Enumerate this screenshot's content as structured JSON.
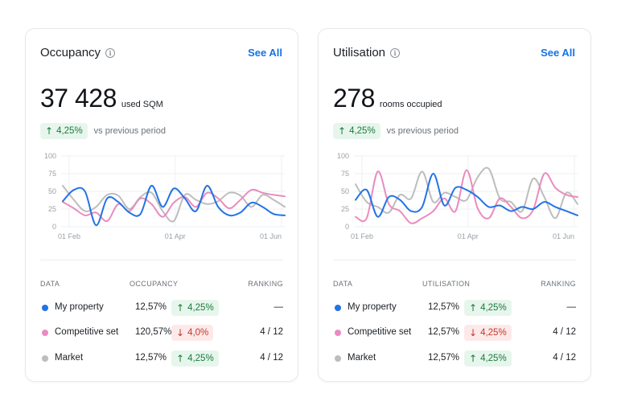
{
  "colors": {
    "my_property": "#2273e6",
    "competitive_set": "#ea8cbf",
    "market": "#bdbdbd",
    "link": "#1473e6",
    "up": "#1b7a3e",
    "down": "#c0392b"
  },
  "cards": [
    {
      "title": "Occupancy",
      "info_icon": "info-icon",
      "see_all": "See All",
      "value": "37 428",
      "unit": "used SQM",
      "delta": {
        "direction": "up",
        "arrow": "↑",
        "value": "4,25%"
      },
      "vs_text": "vs previous period",
      "table": {
        "col_data": "DATA",
        "col_metric": "OCCUPANCY",
        "col_rank": "RANKING",
        "rows": [
          {
            "name": "My property",
            "value": "12,57%",
            "dir": "up",
            "arrow": "↑",
            "delta": "4,25%",
            "rank": "—"
          },
          {
            "name": "Competitive set",
            "value": "120,57%",
            "dir": "down",
            "arrow": "↓",
            "delta": "4,0%",
            "rank": "4 / 12"
          },
          {
            "name": "Market",
            "value": "12,57%",
            "dir": "up",
            "arrow": "↑",
            "delta": "4,25%",
            "rank": "4 / 12"
          }
        ]
      }
    },
    {
      "title": "Utilisation",
      "info_icon": "info-icon",
      "see_all": "See All",
      "value": "278",
      "unit": "rooms occupied",
      "delta": {
        "direction": "up",
        "arrow": "↑",
        "value": "4,25%"
      },
      "vs_text": "vs previous period",
      "table": {
        "col_data": "DATA",
        "col_metric": "UTILISATION",
        "col_rank": "RANKING",
        "rows": [
          {
            "name": "My property",
            "value": "12,57%",
            "dir": "up",
            "arrow": "↑",
            "delta": "4,25%",
            "rank": "—"
          },
          {
            "name": "Competitive set",
            "value": "12,57%",
            "dir": "down",
            "arrow": "↓",
            "delta": "4,25%",
            "rank": "4 / 12"
          },
          {
            "name": "Market",
            "value": "12,57%",
            "dir": "up",
            "arrow": "↑",
            "delta": "4,25%",
            "rank": "4 / 12"
          }
        ]
      }
    }
  ],
  "chart_data": [
    {
      "type": "line",
      "ylim": [
        0,
        100
      ],
      "yticks": [
        "0",
        "25",
        "50",
        "75",
        "100"
      ],
      "xticks": [
        "01 Feb",
        "01 Apr",
        "01 Jun"
      ],
      "grid": true,
      "series": [
        {
          "key": "market",
          "values": [
            58,
            38,
            22,
            28,
            45,
            44,
            25,
            42,
            48,
            22,
            8,
            45,
            38,
            32,
            36,
            48,
            44,
            28,
            45,
            38,
            28
          ]
        },
        {
          "key": "competitive_set",
          "values": [
            35,
            26,
            16,
            20,
            8,
            32,
            22,
            40,
            32,
            14,
            34,
            42,
            28,
            48,
            40,
            26,
            38,
            52,
            48,
            45,
            43
          ]
        },
        {
          "key": "my_property",
          "values": [
            36,
            52,
            50,
            2,
            40,
            35,
            20,
            18,
            58,
            28,
            54,
            40,
            22,
            58,
            28,
            16,
            20,
            34,
            28,
            18,
            16
          ]
        }
      ]
    },
    {
      "type": "line",
      "ylim": [
        0,
        100
      ],
      "yticks": [
        "0",
        "25",
        "50",
        "75",
        "100"
      ],
      "xticks": [
        "01 Feb",
        "01 Apr",
        "01 Jun"
      ],
      "grid": true,
      "series": [
        {
          "key": "market",
          "values": [
            60,
            35,
            28,
            20,
            45,
            40,
            78,
            35,
            48,
            42,
            38,
            70,
            82,
            40,
            35,
            22,
            68,
            42,
            12,
            48,
            32
          ]
        },
        {
          "key": "competitive_set",
          "values": [
            14,
            12,
            78,
            32,
            22,
            5,
            12,
            22,
            40,
            22,
            80,
            26,
            12,
            40,
            28,
            12,
            24,
            75,
            55,
            45,
            42
          ]
        },
        {
          "key": "my_property",
          "values": [
            38,
            52,
            14,
            42,
            38,
            22,
            28,
            75,
            30,
            55,
            52,
            42,
            28,
            30,
            22,
            28,
            25,
            35,
            28,
            22,
            16
          ]
        }
      ]
    }
  ]
}
